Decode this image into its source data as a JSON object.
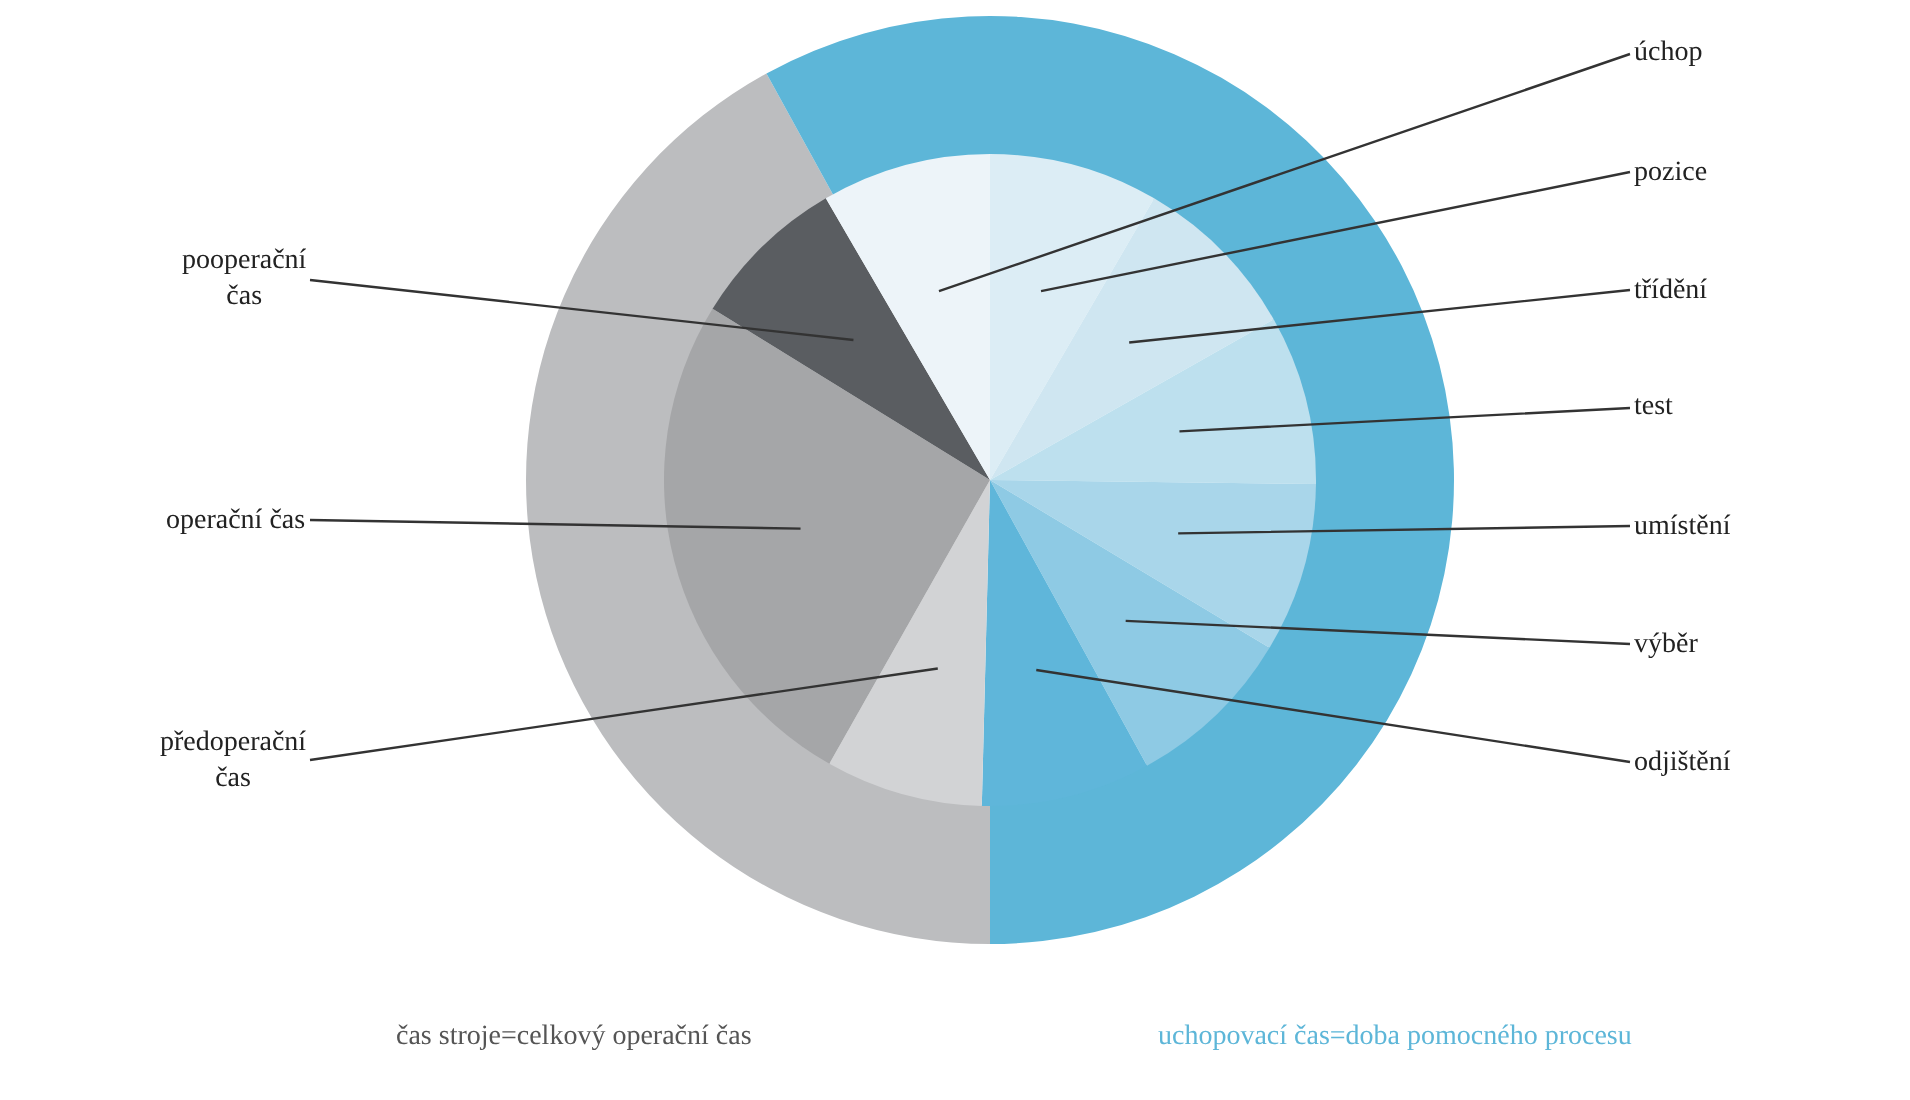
{
  "chart_data": [
    {
      "type": "donut",
      "categories": [
        "čas stroje=celkový operační čas",
        "uchopovací čas=doba pomocného procesu"
      ],
      "values": [
        42,
        58
      ],
      "colors": [
        "#bcbdbf",
        "#5db6d8"
      ]
    },
    {
      "type": "pie",
      "categories": [
        "pozice",
        "třídění",
        "test",
        "umístění",
        "výběr",
        "odjištění",
        "předoperační čas",
        "operační čas",
        "pooperační čas",
        "úchop"
      ],
      "values": [
        8.4,
        8.4,
        8.4,
        8.4,
        8.4,
        8.4,
        7.8,
        25.6,
        7.8,
        8.4
      ],
      "colors": [
        "#dcedf5",
        "#cfe6f1",
        "#bde0ee",
        "#a9d6ea",
        "#8ecae4",
        "#5fb6da",
        "#d2d3d5",
        "#a5a6a8",
        "#5a5d61",
        "#edf4f9"
      ]
    }
  ]
}
